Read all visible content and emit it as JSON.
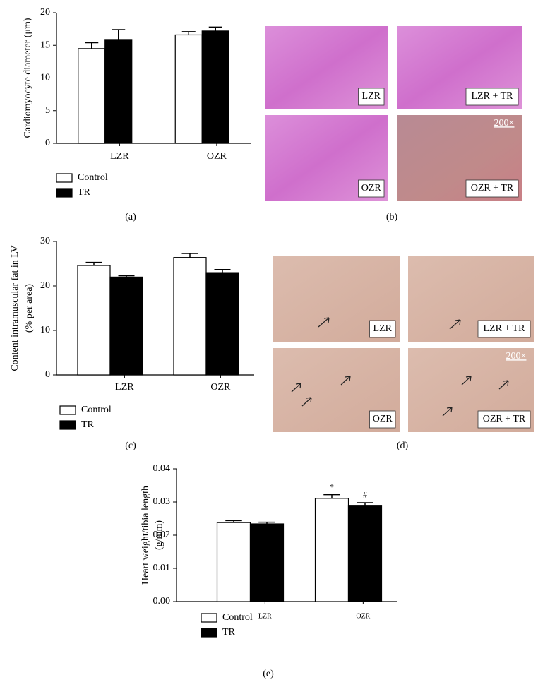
{
  "chart_data": [
    {
      "type": "bar",
      "ylabel": [
        "Cardiomyocyte diameter (μm)"
      ],
      "categories": [
        "LZR",
        "OZR"
      ],
      "series": [
        {
          "name": "Control",
          "color": "#ffffff",
          "values": [
            14.5,
            16.6
          ],
          "errors": [
            0.9,
            0.5
          ]
        },
        {
          "name": "TR",
          "color": "#000000",
          "values": [
            15.9,
            17.2
          ],
          "errors": [
            1.5,
            0.6
          ]
        }
      ],
      "ylim": [
        0,
        20
      ],
      "yticks": [
        0,
        5,
        10,
        15,
        20
      ]
    },
    {
      "type": "bar",
      "ylabel": [
        "Content intramuscular fat in LV",
        "(% per area)"
      ],
      "categories": [
        "LZR",
        "OZR"
      ],
      "series": [
        {
          "name": "Control",
          "color": "#ffffff",
          "values": [
            24.6,
            26.4
          ],
          "errors": [
            0.7,
            0.9
          ]
        },
        {
          "name": "TR",
          "color": "#000000",
          "values": [
            22.0,
            23.0
          ],
          "errors": [
            0.3,
            0.7
          ]
        }
      ],
      "ylim": [
        0,
        30
      ],
      "yticks": [
        0,
        10,
        20,
        30
      ]
    },
    {
      "type": "bar",
      "ylabel": [
        "Heart weight/tibia length",
        "(g/mm)"
      ],
      "categories": [
        "LZR",
        "OZR"
      ],
      "series": [
        {
          "name": "Control",
          "color": "#ffffff",
          "values": [
            0.0238,
            0.0311
          ],
          "errors": [
            0.0006,
            0.0011
          ]
        },
        {
          "name": "TR",
          "color": "#000000",
          "values": [
            0.0234,
            0.029
          ],
          "errors": [
            0.0005,
            0.0008
          ]
        }
      ],
      "annotations": [
        "*",
        "#"
      ],
      "ylim": [
        0,
        0.04
      ],
      "yticks": [
        {
          "value": 0,
          "label": "0.00"
        },
        0.01,
        0.02,
        0.03,
        0.04
      ]
    }
  ],
  "figure": {
    "panel_labels": [
      "(a)",
      "(b)",
      "(c)",
      "(d)",
      "(e)"
    ],
    "micrographs": [
      {
        "labels": [
          "LZR",
          "LZR + TR",
          "OZR",
          "OZR + TR"
        ],
        "magnification": "200×"
      },
      {
        "labels": [
          "LZR",
          "LZR + TR",
          "OZR",
          "OZR + TR"
        ],
        "magnification": "200×"
      }
    ]
  }
}
